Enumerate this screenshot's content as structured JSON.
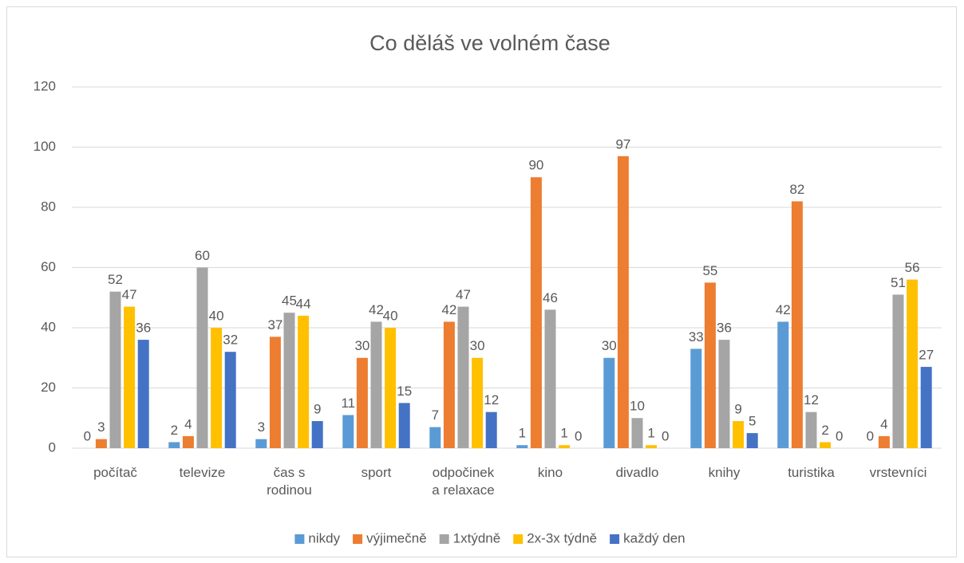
{
  "chart_data": {
    "type": "bar",
    "title": "Co děláš ve volném čase",
    "categories": [
      "počítač",
      "televize",
      "čas s rodinou",
      "sport",
      "odpočinek a relaxace",
      "kino",
      "divadlo",
      "knihy",
      "turistika",
      "vrstevníci"
    ],
    "series": [
      {
        "name": "nikdy",
        "color": "#5b9bd5",
        "values": [
          0,
          2,
          3,
          11,
          7,
          1,
          30,
          33,
          42,
          0
        ]
      },
      {
        "name": "výjimečně",
        "color": "#ed7d31",
        "values": [
          3,
          4,
          37,
          30,
          42,
          90,
          97,
          55,
          82,
          4
        ]
      },
      {
        "name": "1xtýdně",
        "color": "#a5a5a5",
        "values": [
          52,
          60,
          45,
          42,
          47,
          46,
          10,
          36,
          12,
          51
        ]
      },
      {
        "name": "2x-3x týdně",
        "color": "#ffc000",
        "values": [
          47,
          40,
          44,
          40,
          30,
          1,
          1,
          9,
          2,
          56
        ]
      },
      {
        "name": "každý den",
        "color": "#4472c4",
        "values": [
          36,
          32,
          9,
          15,
          12,
          0,
          0,
          5,
          0,
          27
        ]
      }
    ],
    "ylim": [
      0,
      120
    ],
    "yticks": [
      0,
      20,
      40,
      60,
      80,
      100,
      120
    ],
    "grid": true,
    "legend": "bottom"
  }
}
